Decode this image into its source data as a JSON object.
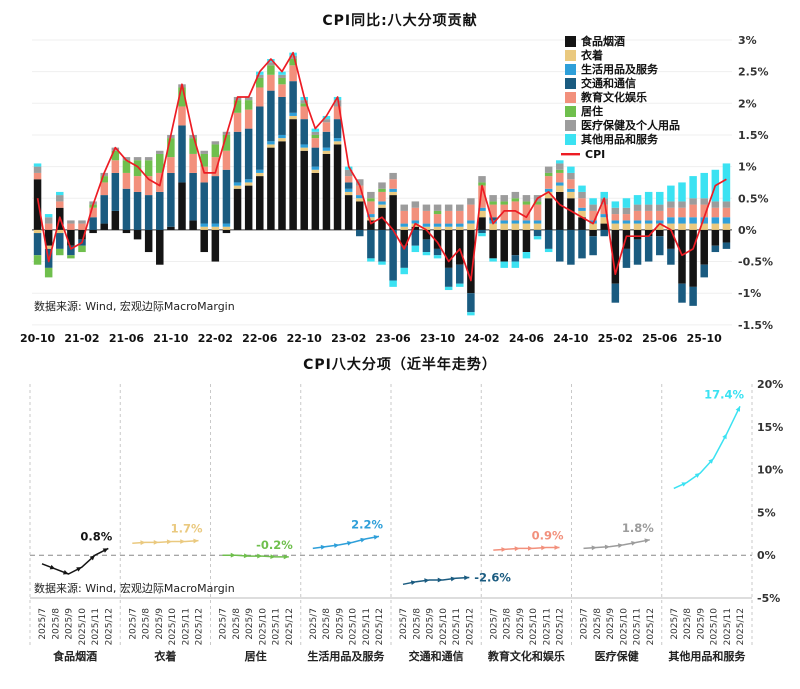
{
  "chart1": {
    "title": "CPI同比:八大分项贡献",
    "source": "数据来源: Wind, 宏观边际MacroMargin"
  },
  "chart2": {
    "title": "CPI八大分项（近半年走势）",
    "source": "数据来源: Wind, 宏观边际MacroMargin"
  },
  "chart_data": [
    {
      "type": "bar",
      "stacked": true,
      "title": "CPI同比:八大分项贡献",
      "x": [
        "2020-10",
        "2020-11",
        "2020-12",
        "2021-01",
        "2021-02",
        "2021-03",
        "2021-04",
        "2021-05",
        "2021-06",
        "2021-07",
        "2021-08",
        "2021-09",
        "2021-10",
        "2021-11",
        "2021-12",
        "2022-01",
        "2022-02",
        "2022-03",
        "2022-04",
        "2022-05",
        "2022-06",
        "2022-07",
        "2022-08",
        "2022-09",
        "2022-10",
        "2022-11",
        "2022-12",
        "2023-01",
        "2023-02",
        "2023-03",
        "2023-04",
        "2023-05",
        "2023-06",
        "2023-07",
        "2023-08",
        "2023-09",
        "2023-10",
        "2023-11",
        "2023-12",
        "2024-01",
        "2024-02",
        "2024-03",
        "2024-04",
        "2024-05",
        "2024-06",
        "2024-07",
        "2024-08",
        "2024-09",
        "2024-10",
        "2024-11",
        "2024-12",
        "2025-01",
        "2025-02",
        "2025-03",
        "2025-04",
        "2025-05",
        "2025-06",
        "2025-07",
        "2025-08",
        "2025-09",
        "2025-10",
        "2025-11",
        "2025-12"
      ],
      "x_tick_indices": [
        0,
        4,
        8,
        12,
        16,
        20,
        24,
        28,
        32,
        36,
        40,
        44,
        48,
        52,
        56,
        60
      ],
      "x_tick_labels": [
        "20-10",
        "21-02",
        "21-06",
        "21-10",
        "22-02",
        "22-06",
        "22-10",
        "23-02",
        "23-06",
        "23-10",
        "24-02",
        "24-06",
        "24-10",
        "25-02",
        "25-06",
        "25-10"
      ],
      "ylim": [
        -1.5,
        3
      ],
      "yticks": [
        {
          "v": 3,
          "label": "3%"
        },
        {
          "v": 2.5,
          "label": "2.5%"
        },
        {
          "v": 2,
          "label": "2%"
        },
        {
          "v": 1.5,
          "label": "1.5%"
        },
        {
          "v": 1,
          "label": "1%"
        },
        {
          "v": 0.5,
          "label": "0.5%"
        },
        {
          "v": 0,
          "label": "0%"
        },
        {
          "v": -0.5,
          "label": "-0.5%"
        },
        {
          "v": -1,
          "label": "-1%"
        },
        {
          "v": -1.5,
          "label": "-1.5%"
        }
      ],
      "series": [
        {
          "name": "食品烟酒",
          "color": "#141414",
          "values": [
            0.8,
            -0.25,
            0.35,
            -0.25,
            -0.15,
            -0.05,
            0.1,
            0.3,
            -0.05,
            -0.15,
            -0.35,
            -0.55,
            0.05,
            0.75,
            0.15,
            -0.35,
            -0.5,
            -0.05,
            0.65,
            0.7,
            0.85,
            1.3,
            1.4,
            1.75,
            1.25,
            0.9,
            1.2,
            1.35,
            0.55,
            0.45,
            0.15,
            0.35,
            0.55,
            -0.25,
            0.05,
            -0.15,
            -0.3,
            -0.6,
            -0.55,
            -1.0,
            0.2,
            -0.45,
            -0.5,
            -0.4,
            -0.35,
            0.0,
            0.5,
            0.6,
            0.5,
            0.2,
            -0.1,
            0.1,
            -0.85,
            -0.3,
            -0.15,
            -0.1,
            -0.1,
            -0.3,
            -0.85,
            -0.9,
            -0.55,
            -0.25,
            -0.2
          ]
        },
        {
          "name": "衣着",
          "color": "#EAC97F",
          "values": [
            -0.05,
            -0.05,
            -0.05,
            0,
            0,
            0,
            0,
            0,
            0,
            0,
            0,
            0,
            0,
            0,
            0,
            0.05,
            0.05,
            0.05,
            0.05,
            0.05,
            0.05,
            0.05,
            0.05,
            0.05,
            0.05,
            0.05,
            0.05,
            0.05,
            0.05,
            0.05,
            0.05,
            0.05,
            0.05,
            0.05,
            0.05,
            0.05,
            0.05,
            0.05,
            0.05,
            0.1,
            0.1,
            0.1,
            0.1,
            0.1,
            0.1,
            0.1,
            0.1,
            0.1,
            0.1,
            0.1,
            0.1,
            0.1,
            0.1,
            0.1,
            0.1,
            0.1,
            0.1,
            0.1,
            0.1,
            0.1,
            0.1,
            0.1,
            0.1
          ]
        },
        {
          "name": "生活用品及服务",
          "color": "#2E9FD9",
          "values": [
            0,
            0,
            0,
            0,
            0,
            0,
            0,
            0,
            0,
            0,
            0,
            0,
            0,
            0,
            0,
            0.05,
            0.05,
            0.05,
            0.05,
            0.05,
            0.05,
            0.05,
            0.05,
            0.05,
            0.05,
            0.05,
            0.05,
            0.05,
            0.05,
            0.05,
            0.05,
            0.05,
            0.05,
            0.05,
            0.05,
            0.05,
            0.05,
            0.05,
            0.05,
            0.05,
            0.05,
            0.05,
            0.05,
            0.05,
            0.05,
            0.05,
            0.05,
            0.05,
            0.05,
            0.05,
            0.05,
            0.05,
            0.05,
            0.05,
            0.05,
            0.05,
            0.05,
            0.1,
            0.1,
            0.1,
            0.1,
            0.1,
            0.1
          ]
        },
        {
          "name": "交通和通信",
          "color": "#1A5B80",
          "values": [
            -0.35,
            -0.3,
            -0.25,
            -0.15,
            -0.1,
            0.2,
            0.45,
            0.6,
            0.65,
            0.6,
            0.55,
            0.6,
            0.85,
            0.9,
            0.75,
            0.65,
            0.75,
            0.85,
            0.8,
            0.8,
            1.0,
            0.8,
            0.6,
            0.5,
            0.4,
            0.3,
            0.25,
            0.3,
            0.1,
            -0.1,
            -0.45,
            -0.5,
            -0.8,
            -0.35,
            -0.25,
            -0.2,
            -0.1,
            -0.3,
            -0.3,
            -0.3,
            -0.05,
            0.05,
            0.0,
            -0.1,
            0.0,
            -0.1,
            -0.3,
            -0.5,
            -0.55,
            -0.45,
            -0.3,
            -0.1,
            -0.3,
            -0.3,
            -0.4,
            -0.4,
            -0.3,
            -0.25,
            -0.3,
            -0.3,
            -0.2,
            -0.1,
            -0.1
          ]
        },
        {
          "name": "教育文化娱乐",
          "color": "#F2907C",
          "values": [
            0.1,
            0.1,
            0.1,
            0.1,
            0.1,
            0.15,
            0.2,
            0.2,
            0.25,
            0.25,
            0.3,
            0.3,
            0.25,
            0.3,
            0.3,
            0.25,
            0.3,
            0.3,
            0.3,
            0.3,
            0.3,
            0.25,
            0.2,
            0.25,
            0.2,
            0.15,
            0.15,
            0.2,
            0.1,
            0.15,
            0.2,
            0.15,
            0.15,
            0.2,
            0.2,
            0.2,
            0.15,
            0.2,
            0.2,
            0.25,
            0.35,
            0.2,
            0.25,
            0.3,
            0.25,
            0.25,
            0.2,
            0.15,
            0.15,
            0.15,
            0.15,
            0.15,
            0.1,
            0.1,
            0.15,
            0.15,
            0.15,
            0.15,
            0.15,
            0.2,
            0.2,
            0.15,
            0.15
          ]
        },
        {
          "name": "居住",
          "color": "#6FBF4D",
          "values": [
            -0.15,
            -0.15,
            -0.1,
            -0.05,
            -0.1,
            0.05,
            0.1,
            0.15,
            0.2,
            0.25,
            0.25,
            0.3,
            0.3,
            0.3,
            0.25,
            0.2,
            0.2,
            0.25,
            0.2,
            0.15,
            0.15,
            0.15,
            0.1,
            0.1,
            0.05,
            0.05,
            0.0,
            0.0,
            0.0,
            0.0,
            0.05,
            0.05,
            0.0,
            0.0,
            0.0,
            0.0,
            0.05,
            0.0,
            0.0,
            0.0,
            0.05,
            0.05,
            0.05,
            0.05,
            0.05,
            0.05,
            0.05,
            0.05,
            0.0,
            0.0,
            0.0,
            0,
            0,
            0,
            0,
            0,
            0,
            0,
            0,
            0,
            0,
            0,
            0
          ]
        },
        {
          "name": "医疗保健及个人用品",
          "color": "#9C9C9C",
          "values": [
            0.1,
            0.1,
            0.1,
            0.05,
            0.05,
            0.05,
            0.05,
            0.05,
            0.05,
            0.05,
            0.05,
            0.05,
            0.05,
            0.05,
            0.05,
            0.05,
            0.05,
            0.05,
            0.05,
            0.05,
            0.05,
            0.05,
            0.05,
            0.05,
            0.05,
            0.05,
            0.05,
            0.1,
            0.1,
            0.1,
            0.1,
            0.1,
            0.1,
            0.1,
            0.1,
            0.1,
            0.1,
            0.1,
            0.1,
            0.1,
            0.1,
            0.1,
            0.1,
            0.1,
            0.1,
            0.1,
            0.1,
            0.1,
            0.1,
            0.1,
            0.1,
            0.1,
            0.1,
            0.1,
            0.1,
            0.1,
            0.1,
            0.1,
            0.1,
            0.1,
            0.1,
            0.1,
            0.1
          ]
        },
        {
          "name": "其他用品和服务",
          "color": "#3BE2F2",
          "values": [
            0.05,
            0.05,
            0.05,
            0,
            0,
            0,
            0,
            0,
            0,
            0,
            0,
            0,
            0,
            0,
            0,
            0,
            0,
            0,
            0,
            0,
            0.05,
            0.05,
            0.05,
            0.05,
            0.05,
            0.05,
            0.05,
            0.05,
            0.05,
            0,
            -0.05,
            -0.05,
            -0.1,
            -0.1,
            -0.1,
            -0.05,
            -0.05,
            -0.05,
            -0.05,
            -0.05,
            -0.05,
            -0.05,
            -0.1,
            -0.1,
            -0.1,
            -0.05,
            -0.05,
            0.05,
            0.1,
            0.1,
            0.1,
            0.1,
            0.1,
            0.15,
            0.15,
            0.2,
            0.2,
            0.25,
            0.3,
            0.35,
            0.4,
            0.5,
            0.6
          ]
        }
      ],
      "line_series": {
        "name": "CPI",
        "color": "#ED1C24",
        "values": [
          0.5,
          -0.5,
          0.2,
          -0.3,
          -0.2,
          0.4,
          0.9,
          1.3,
          1.1,
          1.0,
          0.8,
          0.7,
          1.5,
          2.3,
          1.5,
          0.9,
          0.9,
          1.5,
          2.1,
          2.1,
          2.5,
          2.7,
          2.5,
          2.8,
          2.1,
          1.6,
          1.8,
          2.1,
          1.0,
          0.7,
          0.1,
          0.2,
          0.0,
          -0.3,
          0.1,
          0.0,
          -0.2,
          -0.5,
          -0.3,
          -0.8,
          0.7,
          0.1,
          0.3,
          0.3,
          0.2,
          0.5,
          0.6,
          0.4,
          0.3,
          0.2,
          0.1,
          0.5,
          -0.7,
          -0.1,
          -0.1,
          -0.1,
          0.1,
          0.0,
          -0.4,
          -0.3,
          0.2,
          0.7,
          0.8
        ]
      }
    },
    {
      "type": "line",
      "title": "CPI八大分项（近半年走势）",
      "x": [
        "2025/7",
        "2025/8",
        "2025/9",
        "2025/10",
        "2025/11",
        "2025/12"
      ],
      "ylim": [
        -5,
        20
      ],
      "yticks": [
        {
          "v": 20,
          "label": "20%"
        },
        {
          "v": 15,
          "label": "15%"
        },
        {
          "v": 10,
          "label": "10%"
        },
        {
          "v": 5,
          "label": "5%"
        },
        {
          "v": 0,
          "label": "0%"
        },
        {
          "v": -5,
          "label": "-5%"
        }
      ],
      "panels": [
        {
          "name": "食品烟酒",
          "color": "#141414",
          "values": [
            -1.0,
            -1.6,
            -2.2,
            -1.4,
            0.0,
            0.8
          ],
          "label": "0.8%"
        },
        {
          "name": "衣着",
          "color": "#EAC97F",
          "values": [
            1.4,
            1.5,
            1.5,
            1.6,
            1.6,
            1.7
          ],
          "label": "1.7%"
        },
        {
          "name": "居住",
          "color": "#6FBF4D",
          "values": [
            0.0,
            0.0,
            -0.1,
            -0.1,
            -0.2,
            -0.2
          ],
          "label": "-0.2%"
        },
        {
          "name": "生活用品及服务",
          "color": "#2E9FD9",
          "values": [
            0.8,
            1.0,
            1.2,
            1.5,
            1.9,
            2.2
          ],
          "label": "2.2%"
        },
        {
          "name": "交通和通信",
          "color": "#1A5B80",
          "values": [
            -3.4,
            -3.1,
            -2.9,
            -2.9,
            -2.7,
            -2.6
          ],
          "label": "-2.6%"
        },
        {
          "name": "教育文化和娱乐",
          "color": "#F2907C",
          "values": [
            0.6,
            0.7,
            0.8,
            0.8,
            0.9,
            0.9
          ],
          "label": "0.9%"
        },
        {
          "name": "医疗保健",
          "color": "#9C9C9C",
          "values": [
            0.8,
            0.9,
            1.0,
            1.2,
            1.5,
            1.8
          ],
          "label": "1.8%"
        },
        {
          "name": "其他用品和服务",
          "color": "#3BE2F2",
          "values": [
            7.8,
            8.5,
            9.6,
            11.3,
            14.2,
            17.4
          ],
          "label": "17.4%"
        }
      ]
    }
  ]
}
